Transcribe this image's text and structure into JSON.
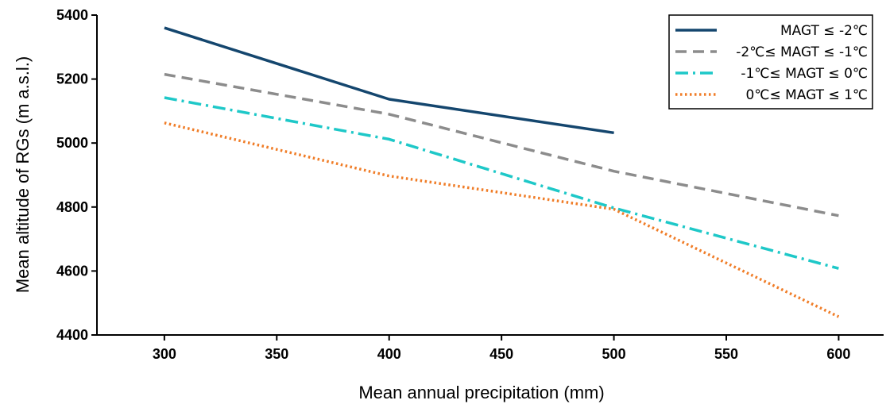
{
  "chart_data": {
    "type": "line",
    "xlabel": "Mean annual precipitation (mm)",
    "ylabel": "Mean altitude of RGs (m a.s.l.)",
    "xlim": [
      270,
      620
    ],
    "ylim": [
      4400,
      5400
    ],
    "xticks": [
      "300",
      "350",
      "400",
      "450",
      "500",
      "550",
      "600"
    ],
    "yticks": [
      "4400",
      "4600",
      "4800",
      "5000",
      "5200",
      "5400"
    ],
    "legend_position": "top-right",
    "grid": false,
    "series": [
      {
        "name": "MAGT ≤ -2℃",
        "color": "#14466e",
        "style": "solid",
        "x": [
          300,
          400,
          500
        ],
        "y": [
          5360,
          5137,
          5032
        ]
      },
      {
        "name": "-2℃≤ MAGT ≤ -1℃",
        "color": "#8c8c8c",
        "style": "dashed",
        "x": [
          300,
          400,
          500,
          600
        ],
        "y": [
          5215,
          5090,
          4912,
          4773
        ]
      },
      {
        "name": "-1℃≤ MAGT ≤ 0℃",
        "color": "#1ec8c8",
        "style": "dashdot",
        "x": [
          300,
          400,
          500,
          600
        ],
        "y": [
          5142,
          5012,
          4797,
          4608
        ]
      },
      {
        "name": "0℃≤ MAGT ≤ 1℃",
        "color": "#f07d28",
        "style": "dotted",
        "x": [
          300,
          400,
          500,
          600
        ],
        "y": [
          5063,
          4897,
          4793,
          4457
        ]
      }
    ]
  }
}
